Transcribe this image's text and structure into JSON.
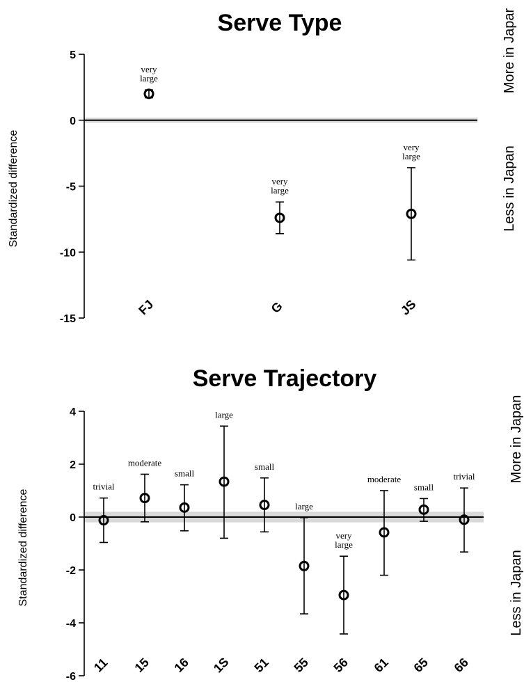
{
  "chart_data": [
    {
      "type": "scatter",
      "title": "Serve Type",
      "ylabel": "Standardized difference",
      "side_labels": {
        "upper": "More in Japar",
        "lower": "Less in Japan"
      },
      "ylim": [
        -15,
        5
      ],
      "yticks": [
        5,
        0,
        -5,
        -10,
        -15
      ],
      "categories": [
        "FJ",
        "G",
        "JS"
      ],
      "values": [
        2.0,
        -7.4,
        -7.1
      ],
      "ci_lower": [
        1.7,
        -8.6,
        -10.6
      ],
      "ci_upper": [
        2.3,
        -6.2,
        -3.6
      ],
      "annotations": [
        "very large",
        "very large",
        "very large"
      ],
      "trivial_band": [
        -0.2,
        0.2
      ],
      "grid": false
    },
    {
      "type": "scatter",
      "title": "Serve Trajectory",
      "ylabel": "Standardized difference",
      "side_labels": {
        "upper": "More in Japan",
        "lower": "Less in Japan"
      },
      "ylim": [
        -6,
        4
      ],
      "yticks": [
        4,
        2,
        0,
        -2,
        -4,
        -6
      ],
      "categories": [
        "11",
        "15",
        "16",
        "1S",
        "51",
        "55",
        "56",
        "61",
        "65",
        "66"
      ],
      "values": [
        -0.12,
        0.72,
        0.36,
        1.34,
        0.46,
        -1.85,
        -2.95,
        -0.58,
        0.28,
        -0.1
      ],
      "ci_lower": [
        -0.96,
        -0.18,
        -0.52,
        -0.8,
        -0.56,
        -3.66,
        -4.42,
        -2.2,
        -0.16,
        -1.32
      ],
      "ci_upper": [
        0.72,
        1.62,
        1.22,
        3.44,
        1.48,
        -0.02,
        -1.48,
        1.0,
        0.7,
        1.1
      ],
      "annotations": [
        "trivial",
        "moderate",
        "small",
        "large",
        "small",
        "large",
        "very large",
        "moderate",
        "small",
        "trivial"
      ],
      "trivial_band": [
        -0.2,
        0.2
      ],
      "grid": false
    }
  ]
}
